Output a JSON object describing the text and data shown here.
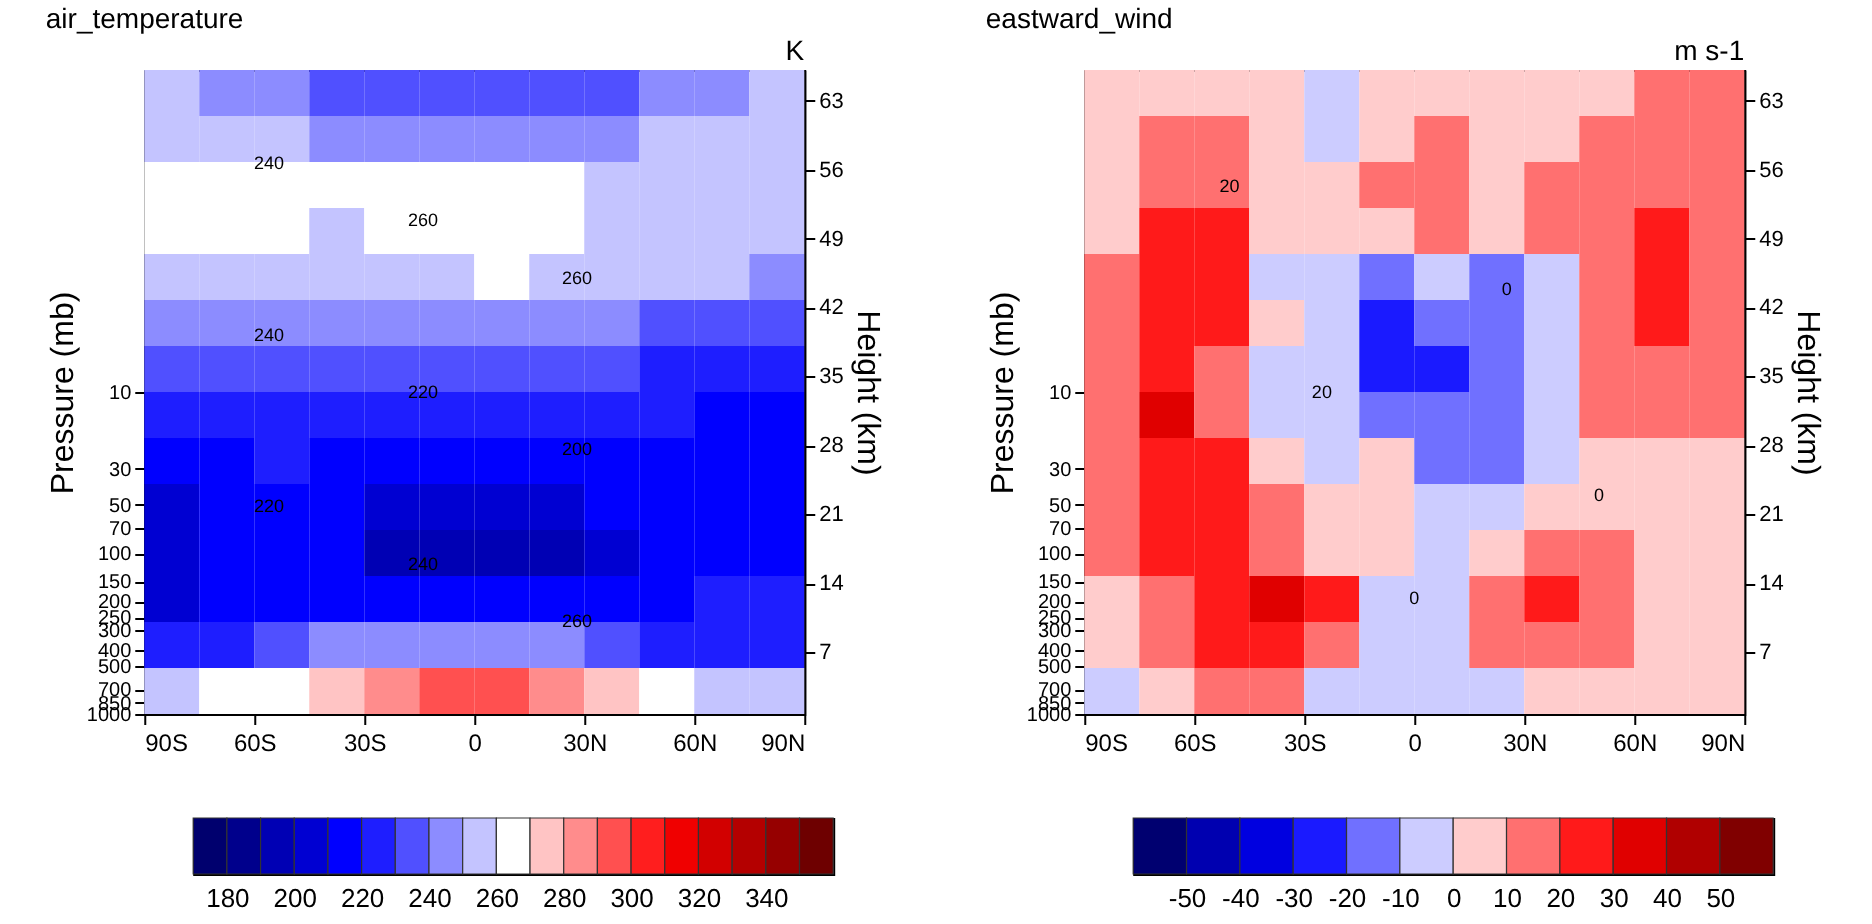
{
  "chart_data": [
    {
      "type": "heatmap",
      "title": "air_temperature",
      "clabel": "K",
      "ylabel": "Pressure (mb)",
      "y2label": "Height (km)",
      "x": [
        -82.5,
        -67.5,
        -52.5,
        -37.5,
        -22.5,
        -7.5,
        7.5,
        22.5,
        37.5,
        52.5,
        67.5,
        82.5
      ],
      "xlim": [
        -90,
        90
      ],
      "xticks": [
        {
          "value": -90,
          "label": "90S"
        },
        {
          "value": -60,
          "label": "60S"
        },
        {
          "value": -30,
          "label": "30S"
        },
        0,
        {
          "value": 30,
          "label": "30N"
        },
        {
          "value": 60,
          "label": "60N"
        },
        {
          "value": 90,
          "label": "90N"
        }
      ],
      "ylim": [
        1000,
        0.1
      ],
      "log": "y",
      "yticks": [
        1000,
        850,
        700,
        500,
        400,
        300,
        250,
        200,
        150,
        100,
        70,
        50,
        30,
        10
      ],
      "y2lim": [
        0.75,
        66.1
      ],
      "y2ticks": [
        7,
        14,
        21,
        28,
        35,
        42,
        49,
        56,
        63
      ],
      "clim": [
        170,
        360
      ],
      "cticks": [
        180,
        200,
        220,
        240,
        260,
        280,
        300,
        320,
        340
      ],
      "cells": [
        [
          255,
          245,
          245,
          235,
          235,
          235,
          235,
          235,
          235,
          245,
          245,
          255
        ],
        [
          255,
          255,
          255,
          245,
          245,
          245,
          245,
          245,
          245,
          255,
          255,
          255
        ],
        [
          265,
          265,
          265,
          265,
          265,
          265,
          265,
          265,
          255,
          255,
          255,
          255
        ],
        [
          265,
          265,
          265,
          255,
          265,
          265,
          265,
          265,
          255,
          255,
          255,
          255
        ],
        [
          255,
          255,
          255,
          255,
          255,
          255,
          265,
          255,
          255,
          255,
          255,
          245
        ],
        [
          245,
          245,
          245,
          245,
          245,
          245,
          245,
          245,
          245,
          235,
          235,
          235
        ],
        [
          235,
          235,
          235,
          235,
          235,
          235,
          235,
          235,
          235,
          225,
          225,
          225
        ],
        [
          225,
          225,
          225,
          225,
          225,
          225,
          225,
          225,
          225,
          225,
          215,
          215
        ],
        [
          215,
          215,
          225,
          215,
          215,
          215,
          215,
          215,
          215,
          215,
          215,
          215
        ],
        [
          205,
          215,
          215,
          215,
          205,
          205,
          205,
          205,
          215,
          215,
          215,
          215
        ],
        [
          205,
          215,
          215,
          215,
          195,
          195,
          195,
          195,
          205,
          215,
          215,
          215
        ],
        [
          205,
          215,
          215,
          215,
          215,
          215,
          215,
          215,
          215,
          215,
          225,
          225
        ],
        [
          225,
          225,
          235,
          245,
          245,
          245,
          245,
          245,
          235,
          225,
          225,
          225
        ],
        [
          255,
          265,
          265,
          275,
          285,
          295,
          295,
          285,
          275,
          265,
          255,
          255
        ]
      ],
      "annotations": [
        "240",
        "260",
        "260",
        "240",
        "220",
        "200",
        "220",
        "240",
        "260"
      ]
    },
    {
      "type": "heatmap",
      "title": "eastward_wind",
      "clabel": "m s-1",
      "ylabel": "Pressure (mb)",
      "y2label": "Height (km)",
      "x": [
        -82.5,
        -67.5,
        -52.5,
        -37.5,
        -22.5,
        -7.5,
        7.5,
        22.5,
        37.5,
        52.5,
        67.5,
        82.5
      ],
      "xlim": [
        -90,
        90
      ],
      "xticks": [
        {
          "value": -90,
          "label": "90S"
        },
        {
          "value": -60,
          "label": "60S"
        },
        {
          "value": -30,
          "label": "30S"
        },
        0,
        {
          "value": 30,
          "label": "30N"
        },
        {
          "value": 60,
          "label": "60N"
        },
        {
          "value": 90,
          "label": "90N"
        }
      ],
      "ylim": [
        1000,
        0.1
      ],
      "log": "y",
      "yticks": [
        1000,
        850,
        700,
        500,
        400,
        300,
        250,
        200,
        150,
        100,
        70,
        50,
        30,
        10
      ],
      "y2lim": [
        0.75,
        66.1
      ],
      "y2ticks": [
        7,
        14,
        21,
        28,
        35,
        42,
        49,
        56,
        63
      ],
      "clim": [
        -60,
        60
      ],
      "cticks": [
        -50,
        -40,
        -30,
        -20,
        -10,
        0,
        10,
        20,
        30,
        40,
        50
      ],
      "cells": [
        [
          5,
          5,
          5,
          5,
          -5,
          5,
          5,
          5,
          5,
          5,
          15,
          15
        ],
        [
          5,
          15,
          15,
          5,
          -5,
          5,
          15,
          5,
          5,
          15,
          15,
          15
        ],
        [
          5,
          15,
          15,
          5,
          5,
          15,
          15,
          5,
          15,
          15,
          15,
          15
        ],
        [
          5,
          25,
          25,
          5,
          5,
          5,
          15,
          5,
          15,
          15,
          25,
          15
        ],
        [
          15,
          25,
          25,
          -5,
          -5,
          -15,
          -5,
          -15,
          -5,
          15,
          25,
          15
        ],
        [
          15,
          25,
          25,
          5,
          -5,
          -25,
          -15,
          -15,
          -5,
          15,
          25,
          15
        ],
        [
          15,
          25,
          15,
          -5,
          -5,
          -25,
          -25,
          -15,
          -5,
          15,
          15,
          15
        ],
        [
          15,
          35,
          15,
          -5,
          -5,
          -15,
          -15,
          -15,
          -5,
          15,
          15,
          15
        ],
        [
          15,
          25,
          25,
          5,
          -5,
          5,
          -15,
          -15,
          -5,
          5,
          5,
          5
        ],
        [
          15,
          25,
          25,
          15,
          5,
          5,
          -5,
          -5,
          5,
          5,
          5,
          5
        ],
        [
          15,
          25,
          25,
          15,
          5,
          5,
          -5,
          5,
          15,
          15,
          5,
          5
        ],
        [
          5,
          15,
          25,
          35,
          25,
          -5,
          -5,
          15,
          25,
          15,
          5,
          5
        ],
        [
          5,
          15,
          25,
          25,
          15,
          -5,
          -5,
          15,
          15,
          15,
          5,
          5
        ],
        [
          -5,
          5,
          15,
          15,
          -5,
          -5,
          -5,
          -5,
          5,
          5,
          5,
          5
        ]
      ],
      "annotations": [
        "20",
        "0",
        "20",
        "0",
        "0"
      ]
    }
  ]
}
